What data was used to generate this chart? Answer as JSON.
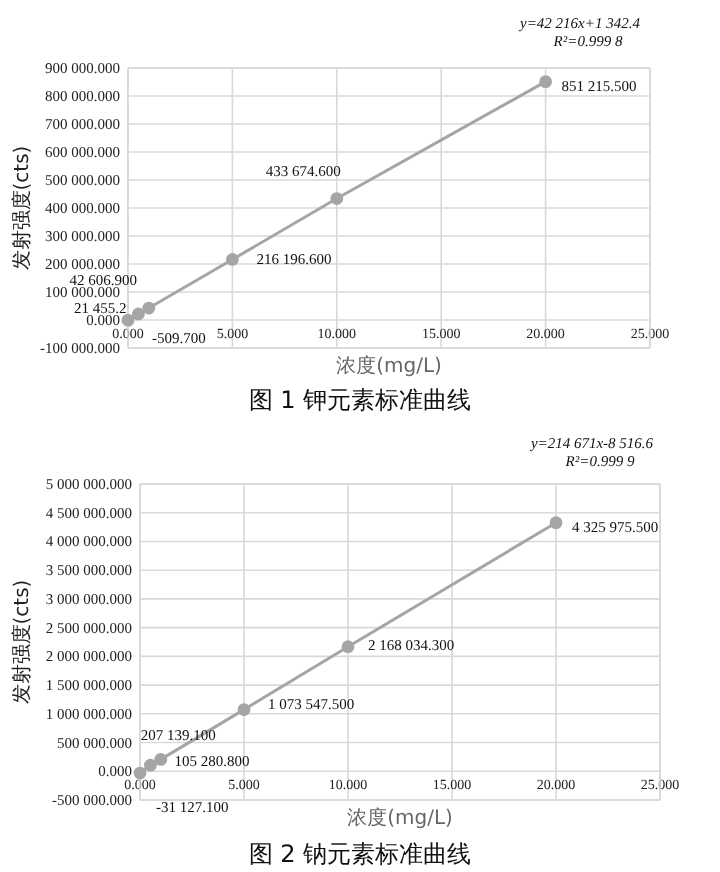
{
  "chart_data": [
    {
      "type": "line",
      "title": "图 1 钾元素标准曲线",
      "xlabel": "浓度(mg/L)",
      "ylabel": "发射强度(cts)",
      "marker": "circle",
      "grid": true,
      "x": [
        0,
        0.5,
        1,
        5,
        10,
        20
      ],
      "series": [
        {
          "color": "#a5a5a5",
          "values": [
            -509.7,
            21455.2,
            42606.9,
            216196.6,
            433674.6,
            851215.5
          ],
          "value_labels": [
            "-509.700",
            "21 455.2",
            "42 606.900",
            "216 196.600",
            "433 674.600",
            "851 215.500"
          ]
        }
      ],
      "xlim": [
        0,
        25
      ],
      "xticks": [
        {
          "value": 0,
          "label": "0.000"
        },
        {
          "value": 5,
          "label": "5.000"
        },
        {
          "value": 10,
          "label": "10.000"
        },
        {
          "value": 15,
          "label": "15.000"
        },
        {
          "value": 20,
          "label": "20.000"
        },
        {
          "value": 25,
          "label": "25.000"
        }
      ],
      "ylim": [
        -100000,
        900000
      ],
      "yticks": [
        {
          "value": -100000,
          "label": "-100 000.000"
        },
        {
          "value": 0,
          "label": "0.000"
        },
        {
          "value": 100000,
          "label": "100 000.000"
        },
        {
          "value": 200000,
          "label": "200 000.000"
        },
        {
          "value": 300000,
          "label": "300 000.000"
        },
        {
          "value": 400000,
          "label": "400 000.000"
        },
        {
          "value": 500000,
          "label": "500 000.000"
        },
        {
          "value": 600000,
          "label": "600 000.000"
        },
        {
          "value": 700000,
          "label": "700 000.000"
        },
        {
          "value": 800000,
          "label": "800 000.000"
        },
        {
          "value": 900000,
          "label": "900 000.000"
        }
      ],
      "annotations": [
        "y=42 216x+1 342.4",
        "R²=0.999 8"
      ]
    },
    {
      "type": "line",
      "title": "图 2 钠元素标准曲线",
      "xlabel": "浓度(mg/L)",
      "ylabel": "发射强度(cts)",
      "marker": "circle",
      "grid": true,
      "x": [
        0,
        0.5,
        1,
        5,
        10,
        20
      ],
      "series": [
        {
          "color": "#a5a5a5",
          "values": [
            -31127.1,
            105280.8,
            207139.1,
            1073547.5,
            2168034.3,
            4325975.5
          ],
          "value_labels": [
            "-31 127.100",
            "105 280.800",
            "207 139.100",
            "1 073 547.500",
            "2 168 034.300",
            "4 325 975.500"
          ]
        }
      ],
      "xlim": [
        0,
        25
      ],
      "xticks": [
        {
          "value": 0,
          "label": "0.000"
        },
        {
          "value": 5,
          "label": "5.000"
        },
        {
          "value": 10,
          "label": "10.000"
        },
        {
          "value": 15,
          "label": "15.000"
        },
        {
          "value": 20,
          "label": "20.000"
        },
        {
          "value": 25,
          "label": "25.000"
        }
      ],
      "ylim": [
        -500000,
        5000000
      ],
      "yticks": [
        {
          "value": -500000,
          "label": "-500 000.000"
        },
        {
          "value": 0,
          "label": "0.000"
        },
        {
          "value": 500000,
          "label": "500 000.000"
        },
        {
          "value": 1000000,
          "label": "1 000 000.000"
        },
        {
          "value": 1500000,
          "label": "1 500 000.000"
        },
        {
          "value": 2000000,
          "label": "2 000 000.000"
        },
        {
          "value": 2500000,
          "label": "2 500 000.000"
        },
        {
          "value": 3000000,
          "label": "3 000 000.000"
        },
        {
          "value": 3500000,
          "label": "3 500 000.000"
        },
        {
          "value": 4000000,
          "label": "4 000 000.000"
        },
        {
          "value": 4500000,
          "label": "4 500 000.000"
        },
        {
          "value": 5000000,
          "label": "5 000 000.000"
        }
      ],
      "annotations": [
        "y=214 671x-8 516.6",
        "R²=0.999 9"
      ]
    }
  ]
}
